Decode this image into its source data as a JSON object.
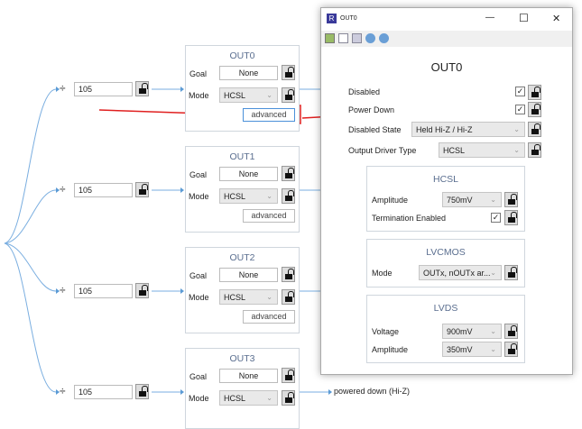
{
  "dividers": [
    {
      "value": "105"
    },
    {
      "value": "105"
    },
    {
      "value": "105"
    },
    {
      "value": "105"
    }
  ],
  "divide_symbol": "÷",
  "outputs": [
    {
      "title": "OUT0",
      "goal_label": "Goal",
      "goal": "None",
      "mode_label": "Mode",
      "mode": "HCSL",
      "advanced": "advanced"
    },
    {
      "title": "OUT1",
      "goal_label": "Goal",
      "goal": "None",
      "mode_label": "Mode",
      "mode": "HCSL",
      "advanced": "advanced"
    },
    {
      "title": "OUT2",
      "goal_label": "Goal",
      "goal": "None",
      "mode_label": "Mode",
      "mode": "HCSL",
      "advanced": "advanced"
    },
    {
      "title": "OUT3",
      "goal_label": "Goal",
      "goal": "None",
      "mode_label": "Mode",
      "mode": "HCSL"
    }
  ],
  "out3_status": "powered down (Hi-Z)",
  "window": {
    "title": "OUT0",
    "heading": "OUT0",
    "minimize": "—",
    "maximize": "☐",
    "close": "✕",
    "disabled_label": "Disabled",
    "disabled": true,
    "power_down_label": "Power Down",
    "power_down": true,
    "disabled_state_label": "Disabled State",
    "disabled_state": "Held Hi-Z / Hi-Z",
    "driver_type_label": "Output Driver Type",
    "driver_type": "HCSL",
    "hcsl": {
      "title": "HCSL",
      "amplitude_label": "Amplitude",
      "amplitude": "750mV",
      "termination_label": "Termination Enabled",
      "termination": true
    },
    "lvcmos": {
      "title": "LVCMOS",
      "mode_label": "Mode",
      "mode": "OUTx, nOUTx ar..."
    },
    "lvds": {
      "title": "LVDS",
      "voltage_label": "Voltage",
      "voltage": "900mV",
      "amplitude_label": "Amplitude",
      "amplitude": "350mV"
    }
  },
  "colors": {
    "connector": "#5b9bd5",
    "highlight": "#e02020",
    "title": "#5a6e8f"
  }
}
